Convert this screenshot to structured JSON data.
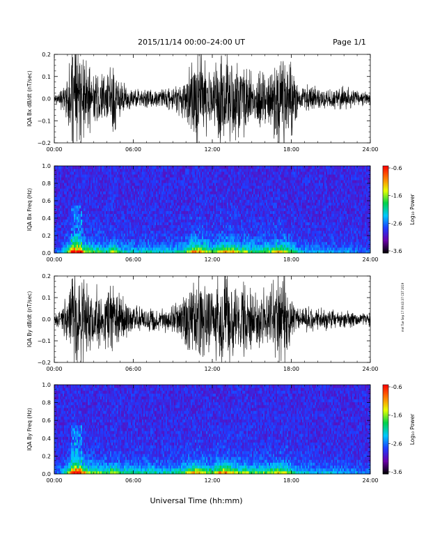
{
  "header": {
    "title": "2015/11/14  00:00–24:00 UT",
    "page": "Page 1/1"
  },
  "footer": {
    "xlabel": "Universal Time (hh:mm)",
    "side_note": "mel Tue Sep 17 09:43:37 CST 2019"
  },
  "colorbar": {
    "label": "Log₁₀ Power",
    "ticks": [
      "-0.6",
      "-1.6",
      "-2.6",
      "-3.6"
    ],
    "range": [
      -3.6,
      -0.6
    ],
    "colors": [
      "#000000",
      "#6a00a8",
      "#1f3cff",
      "#00c8ff",
      "#00d24a",
      "#e6ff00",
      "#ff7a00",
      "#ff0000"
    ]
  },
  "chart_data": [
    {
      "type": "line",
      "ylabel": "IQA Bx dB/dt (nT/sec)",
      "ylim": [
        -0.2,
        0.2
      ],
      "yticks": [
        "0.2",
        "0.1",
        "0.0",
        "−0.1",
        "−0.2"
      ],
      "xlim": [
        "00:00",
        "24:00"
      ],
      "xticks": [
        "00:00",
        "06:00",
        "12:00",
        "18:00",
        "24:00"
      ],
      "trace_color": "#000000",
      "envelope": {
        "time_h": [
          0,
          0.5,
          1,
          1.4,
          1.7,
          2.0,
          2.5,
          3,
          4,
          4.5,
          5,
          6,
          7,
          8,
          9,
          10,
          10.5,
          11,
          11.5,
          12,
          12.5,
          13,
          13.5,
          14,
          14.5,
          15,
          16,
          16.5,
          17,
          17.5,
          18,
          18.5,
          19,
          20,
          21,
          22,
          23,
          23.5,
          24
        ],
        "amplitude": [
          0.02,
          0.04,
          0.09,
          0.22,
          0.22,
          0.2,
          0.14,
          0.12,
          0.1,
          0.16,
          0.08,
          0.04,
          0.04,
          0.04,
          0.05,
          0.09,
          0.22,
          0.2,
          0.16,
          0.09,
          0.18,
          0.2,
          0.22,
          0.14,
          0.16,
          0.1,
          0.12,
          0.14,
          0.22,
          0.22,
          0.14,
          0.06,
          0.05,
          0.05,
          0.04,
          0.05,
          0.03,
          0.03,
          0.03
        ]
      }
    },
    {
      "type": "heatmap",
      "ylabel": "IQA Bx Freq (Hz)",
      "ylim": [
        0,
        1.0
      ],
      "yticks": [
        "1.0",
        "0.8",
        "0.6",
        "0.4",
        "0.2",
        "0.0"
      ],
      "xlim": [
        "00:00",
        "24:00"
      ],
      "xticks": [
        "00:00",
        "06:00",
        "12:00",
        "18:00",
        "24:00"
      ],
      "zlabel": "Log₁₀ Power",
      "zlim": [
        -3.6,
        -0.6
      ],
      "activity": {
        "time_h": [
          0,
          0.5,
          1,
          1.4,
          1.7,
          2.0,
          2.5,
          3,
          4,
          4.5,
          5,
          6,
          7,
          8,
          9,
          10,
          10.5,
          11,
          11.5,
          12,
          12.5,
          13,
          13.5,
          14,
          14.5,
          15,
          16,
          16.5,
          17,
          17.5,
          18,
          18.5,
          19,
          20,
          21,
          22,
          23,
          23.5,
          24
        ],
        "level": [
          0.1,
          0.2,
          0.45,
          1.0,
          1.0,
          0.9,
          0.6,
          0.5,
          0.4,
          0.7,
          0.35,
          0.3,
          0.35,
          0.3,
          0.3,
          0.45,
          0.85,
          0.8,
          0.65,
          0.45,
          0.7,
          0.75,
          0.8,
          0.55,
          0.6,
          0.45,
          0.5,
          0.55,
          0.75,
          0.7,
          0.5,
          0.3,
          0.25,
          0.22,
          0.2,
          0.2,
          0.15,
          0.12,
          0.1
        ]
      }
    },
    {
      "type": "line",
      "ylabel": "IQA By dB/dt (nT/sec)",
      "ylim": [
        -0.2,
        0.2
      ],
      "yticks": [
        "0.2",
        "0.1",
        "0.0",
        "−0.1",
        "−0.2"
      ],
      "xlim": [
        "00:00",
        "24:00"
      ],
      "xticks": [
        "00:00",
        "06:00",
        "12:00",
        "18:00",
        "24:00"
      ],
      "trace_color": "#000000",
      "envelope": {
        "time_h": [
          0,
          0.5,
          1,
          1.4,
          1.7,
          2.0,
          2.5,
          3,
          4,
          4.5,
          5,
          6,
          7,
          8,
          9,
          10,
          10.5,
          11,
          11.5,
          12,
          12.5,
          13,
          13.5,
          14,
          14.5,
          15,
          16,
          16.5,
          17,
          17.5,
          18,
          18.5,
          19,
          20,
          21,
          22,
          23,
          23.5,
          24
        ],
        "amplitude": [
          0.02,
          0.04,
          0.1,
          0.22,
          0.22,
          0.21,
          0.16,
          0.14,
          0.12,
          0.18,
          0.1,
          0.06,
          0.05,
          0.05,
          0.06,
          0.1,
          0.18,
          0.18,
          0.16,
          0.12,
          0.2,
          0.22,
          0.18,
          0.14,
          0.15,
          0.12,
          0.12,
          0.14,
          0.2,
          0.2,
          0.1,
          0.05,
          0.05,
          0.05,
          0.04,
          0.04,
          0.03,
          0.03,
          0.03
        ]
      }
    },
    {
      "type": "heatmap",
      "ylabel": "IQA By Freq (Hz)",
      "ylim": [
        0,
        1.0
      ],
      "yticks": [
        "1.0",
        "0.8",
        "0.6",
        "0.4",
        "0.2",
        "0.0"
      ],
      "xlim": [
        "00:00",
        "24:00"
      ],
      "xticks": [
        "00:00",
        "06:00",
        "12:00",
        "18:00",
        "24:00"
      ],
      "zlabel": "Log₁₀ Power",
      "zlim": [
        -3.6,
        -0.6
      ],
      "activity": {
        "time_h": [
          0,
          0.5,
          1,
          1.4,
          1.7,
          2.0,
          2.5,
          3,
          4,
          4.5,
          5,
          6,
          7,
          8,
          9,
          10,
          10.5,
          11,
          11.5,
          12,
          12.5,
          13,
          13.5,
          14,
          14.5,
          15,
          16,
          16.5,
          17,
          17.5,
          18,
          18.5,
          19,
          20,
          21,
          22,
          23,
          23.5,
          24
        ],
        "level": [
          0.1,
          0.2,
          0.45,
          1.0,
          1.0,
          0.9,
          0.6,
          0.55,
          0.45,
          0.7,
          0.45,
          0.4,
          0.4,
          0.35,
          0.35,
          0.5,
          0.75,
          0.7,
          0.6,
          0.5,
          0.75,
          0.8,
          0.7,
          0.55,
          0.6,
          0.5,
          0.5,
          0.55,
          0.7,
          0.65,
          0.45,
          0.3,
          0.3,
          0.25,
          0.25,
          0.2,
          0.18,
          0.15,
          0.12
        ]
      }
    }
  ]
}
